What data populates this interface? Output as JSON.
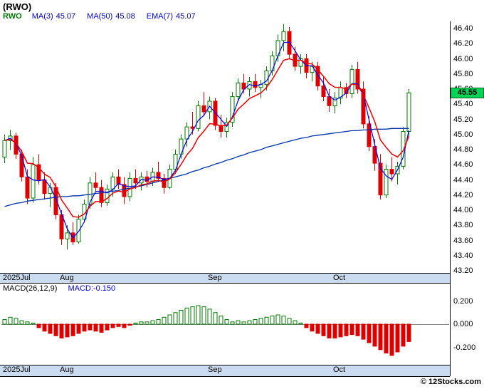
{
  "title": "(RWO)",
  "legend": {
    "symbol": "RWO",
    "items": [
      {
        "label": "MA(3)",
        "value": "45.07"
      },
      {
        "label": "MA(50)",
        "value": "45.08"
      },
      {
        "label": "EMA(7)",
        "value": "45.07"
      }
    ]
  },
  "price_badge": "45.55",
  "macd_panel": {
    "label": "MACD(26,12,9)",
    "value_label": "MACD:-0.150"
  },
  "copyright": "© 12Stocks.com",
  "axes": {
    "price_ticks": [
      "46.40",
      "46.20",
      "46.00",
      "45.80",
      "45.60",
      "45.40",
      "45.20",
      "45.00",
      "44.80",
      "44.60",
      "44.40",
      "44.20",
      "44.00",
      "43.80",
      "43.60",
      "43.40",
      "43.20"
    ],
    "macd_ticks": [
      "0.200",
      "0.000",
      "-0.200"
    ],
    "months": [
      "2025Jul",
      "Aug",
      "Sep",
      "Oct"
    ],
    "month_candle_indices": [
      0,
      10,
      36,
      58
    ]
  },
  "colors": {
    "up": "#007a00",
    "down": "#dd0000",
    "ma3": "#0000ee",
    "ma50": "#0033aa",
    "ema7": "#ee0000",
    "badge_bg": "#00d455",
    "axis_strip": "#ccdcf0",
    "macd_pos": "#007a00",
    "macd_neg": "#dd0000"
  },
  "chart_data": [
    {
      "type": "candlestick",
      "name": "RWO daily price",
      "ylim": [
        43.2,
        46.4
      ],
      "y_tick_step": 0.2,
      "last_price": 45.55,
      "x_axis": {
        "months": [
          "2025Jul",
          "Aug",
          "Sep",
          "Oct"
        ],
        "month_candle_indices": [
          0,
          10,
          36,
          58
        ]
      },
      "ohlc": [
        [
          44.7,
          45.0,
          44.62,
          44.92
        ],
        [
          44.92,
          45.06,
          44.8,
          44.98
        ],
        [
          44.98,
          45.02,
          44.68,
          44.74
        ],
        [
          44.74,
          44.8,
          44.38,
          44.44
        ],
        [
          44.44,
          44.54,
          44.08,
          44.16
        ],
        [
          44.16,
          44.7,
          44.1,
          44.6
        ],
        [
          44.6,
          44.74,
          44.34,
          44.4
        ],
        [
          44.4,
          44.5,
          44.14,
          44.22
        ],
        [
          44.22,
          44.36,
          44.04,
          44.3
        ],
        [
          44.3,
          44.36,
          43.88,
          43.94
        ],
        [
          43.94,
          44.0,
          43.54,
          43.62
        ],
        [
          43.62,
          43.8,
          43.48,
          43.7
        ],
        [
          43.7,
          43.84,
          43.54,
          43.58
        ],
        [
          43.58,
          43.94,
          43.56,
          43.88
        ],
        [
          43.88,
          44.14,
          43.84,
          44.08
        ],
        [
          44.08,
          44.44,
          44.02,
          44.36
        ],
        [
          44.36,
          44.5,
          44.24,
          44.3
        ],
        [
          44.3,
          44.4,
          44.04,
          44.1
        ],
        [
          44.1,
          44.34,
          44.06,
          44.28
        ],
        [
          44.28,
          44.5,
          44.18,
          44.44
        ],
        [
          44.44,
          44.54,
          44.28,
          44.34
        ],
        [
          44.34,
          44.44,
          44.08,
          44.18
        ],
        [
          44.18,
          44.5,
          44.12,
          44.42
        ],
        [
          44.42,
          44.54,
          44.28,
          44.36
        ],
        [
          44.36,
          44.5,
          44.26,
          44.44
        ],
        [
          44.44,
          44.52,
          44.3,
          44.38
        ],
        [
          44.38,
          44.56,
          44.32,
          44.5
        ],
        [
          44.5,
          44.64,
          44.38,
          44.42
        ],
        [
          44.42,
          44.48,
          44.22,
          44.3
        ],
        [
          44.3,
          44.6,
          44.28,
          44.54
        ],
        [
          44.54,
          44.8,
          44.48,
          44.74
        ],
        [
          44.74,
          45.0,
          44.68,
          44.94
        ],
        [
          44.94,
          45.16,
          44.84,
          45.1
        ],
        [
          45.1,
          45.3,
          45.0,
          45.08
        ],
        [
          45.08,
          45.44,
          45.04,
          45.38
        ],
        [
          45.38,
          45.56,
          45.24,
          45.3
        ],
        [
          45.3,
          45.5,
          45.2,
          45.44
        ],
        [
          45.44,
          45.48,
          45.06,
          45.12
        ],
        [
          45.12,
          45.26,
          44.96,
          45.04
        ],
        [
          45.04,
          45.22,
          44.96,
          45.16
        ],
        [
          45.16,
          45.56,
          45.1,
          45.5
        ],
        [
          45.5,
          45.74,
          45.44,
          45.68
        ],
        [
          45.68,
          45.8,
          45.54,
          45.6
        ],
        [
          45.6,
          45.76,
          45.5,
          45.7
        ],
        [
          45.7,
          45.8,
          45.56,
          45.62
        ],
        [
          45.62,
          45.72,
          45.48,
          45.66
        ],
        [
          45.66,
          45.9,
          45.58,
          45.84
        ],
        [
          45.84,
          46.1,
          45.78,
          46.04
        ],
        [
          46.04,
          46.32,
          45.96,
          46.24
        ],
        [
          46.24,
          46.46,
          46.1,
          46.36
        ],
        [
          46.36,
          46.42,
          46.0,
          46.06
        ],
        [
          46.06,
          46.16,
          45.84,
          45.9
        ],
        [
          45.9,
          46.06,
          45.8,
          46.0
        ],
        [
          46.0,
          46.06,
          45.74,
          45.82
        ],
        [
          45.82,
          45.96,
          45.7,
          45.9
        ],
        [
          45.9,
          45.96,
          45.58,
          45.64
        ],
        [
          45.64,
          45.76,
          45.44,
          45.5
        ],
        [
          45.5,
          45.6,
          45.3,
          45.38
        ],
        [
          45.38,
          45.56,
          45.28,
          45.48
        ],
        [
          45.48,
          45.7,
          45.4,
          45.62
        ],
        [
          45.62,
          45.68,
          45.48,
          45.54
        ],
        [
          45.54,
          45.92,
          45.48,
          45.86
        ],
        [
          45.86,
          45.96,
          45.54,
          45.6
        ],
        [
          45.6,
          45.7,
          45.08,
          45.14
        ],
        [
          45.14,
          45.24,
          44.78,
          44.84
        ],
        [
          44.84,
          44.94,
          44.52,
          44.62
        ],
        [
          44.62,
          44.74,
          44.14,
          44.2
        ],
        [
          44.2,
          44.6,
          44.16,
          44.54
        ],
        [
          44.54,
          44.7,
          44.38,
          44.48
        ],
        [
          44.48,
          44.64,
          44.34,
          44.58
        ],
        [
          44.58,
          45.1,
          44.54,
          45.04
        ],
        [
          45.04,
          45.6,
          44.98,
          45.55
        ]
      ],
      "overlays": [
        {
          "name": "MA(3)",
          "type": "sma",
          "period": 3
        },
        {
          "name": "MA(50)",
          "type": "sma",
          "period": 50,
          "values": [
            44.05,
            44.07,
            44.09,
            44.1,
            44.12,
            44.13,
            44.14,
            44.15,
            44.16,
            44.17,
            44.18,
            44.18,
            44.19,
            44.19,
            44.2,
            44.21,
            44.22,
            44.23,
            44.24,
            44.25,
            44.26,
            44.28,
            44.29,
            44.31,
            44.32,
            44.34,
            44.36,
            44.38,
            44.4,
            44.42,
            44.44,
            44.46,
            44.48,
            44.51,
            44.53,
            44.56,
            44.58,
            44.61,
            44.63,
            44.66,
            44.68,
            44.71,
            44.73,
            44.76,
            44.78,
            44.8,
            44.83,
            44.85,
            44.87,
            44.89,
            44.91,
            44.93,
            44.95,
            44.96,
            44.98,
            44.99,
            45.0,
            45.01,
            45.02,
            45.03,
            45.04,
            45.05,
            45.05,
            45.06,
            45.06,
            45.07,
            45.07,
            45.07,
            45.08,
            45.08,
            45.08,
            45.08
          ]
        },
        {
          "name": "EMA(7)",
          "type": "ema",
          "period": 7
        }
      ]
    },
    {
      "type": "bar",
      "name": "MACD(26,12,9) histogram",
      "current": -0.15,
      "ylim": [
        -0.3,
        0.25
      ],
      "ticks": [
        0.2,
        0.0,
        -0.2
      ],
      "values": [
        0.04,
        0.06,
        0.05,
        0.03,
        0.02,
        0.01,
        -0.03,
        -0.06,
        -0.08,
        -0.1,
        -0.12,
        -0.11,
        -0.1,
        -0.08,
        -0.06,
        -0.05,
        -0.06,
        -0.07,
        -0.05,
        -0.03,
        -0.02,
        -0.03,
        -0.01,
        0.01,
        0.02,
        0.02,
        0.03,
        0.04,
        0.06,
        0.08,
        0.1,
        0.12,
        0.14,
        0.15,
        0.16,
        0.15,
        0.13,
        0.1,
        0.07,
        0.04,
        0.02,
        0.03,
        0.02,
        0.03,
        0.04,
        0.05,
        0.06,
        0.07,
        0.08,
        0.07,
        0.05,
        0.03,
        0.01,
        -0.03,
        -0.06,
        -0.08,
        -0.1,
        -0.12,
        -0.12,
        -0.11,
        -0.1,
        -0.09,
        -0.1,
        -0.13,
        -0.16,
        -0.19,
        -0.22,
        -0.25,
        -0.27,
        -0.24,
        -0.19,
        -0.15
      ]
    }
  ]
}
